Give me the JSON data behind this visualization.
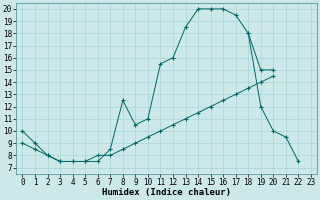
{
  "xlabel": "Humidex (Indice chaleur)",
  "bg_color": "#cce8e8",
  "line_color": "#006666",
  "grid_color": "#aad4d4",
  "xlim": [
    -0.5,
    23.5
  ],
  "ylim": [
    6.5,
    20.5
  ],
  "xticks": [
    0,
    1,
    2,
    3,
    4,
    5,
    6,
    7,
    8,
    9,
    10,
    11,
    12,
    13,
    14,
    15,
    16,
    17,
    18,
    19,
    20,
    21,
    22,
    23
  ],
  "yticks": [
    7,
    8,
    9,
    10,
    11,
    12,
    13,
    14,
    15,
    16,
    17,
    18,
    19,
    20
  ],
  "curve1_x": [
    0,
    1,
    2,
    3,
    4,
    5,
    6,
    7,
    8,
    9,
    10,
    11,
    12,
    13,
    14,
    15,
    16,
    17,
    18,
    19,
    20
  ],
  "curve1_y": [
    10,
    9,
    8,
    7.5,
    7.5,
    7.5,
    7.5,
    8.5,
    12.5,
    10.5,
    11,
    15.5,
    16,
    18.5,
    20,
    20,
    20,
    19.5,
    18,
    15,
    15
  ],
  "curve2_x": [
    0,
    1,
    2,
    3,
    4,
    5,
    6,
    7,
    8,
    9,
    10,
    11,
    12,
    13,
    14,
    15,
    16,
    17,
    18,
    19,
    20
  ],
  "curve2_y": [
    9,
    8.5,
    8,
    7.5,
    7.5,
    7.5,
    8,
    8,
    8.5,
    9,
    9.5,
    10,
    10.5,
    11,
    11.5,
    12,
    12.5,
    13,
    13.5,
    14,
    14.5
  ],
  "curve3_x": [
    18,
    19,
    20,
    21,
    22
  ],
  "curve3_y": [
    18,
    12,
    10,
    9.5,
    7.5
  ],
  "title_fontsize": 6.5,
  "axis_fontsize": 6.5,
  "tick_fontsize": 5.5
}
